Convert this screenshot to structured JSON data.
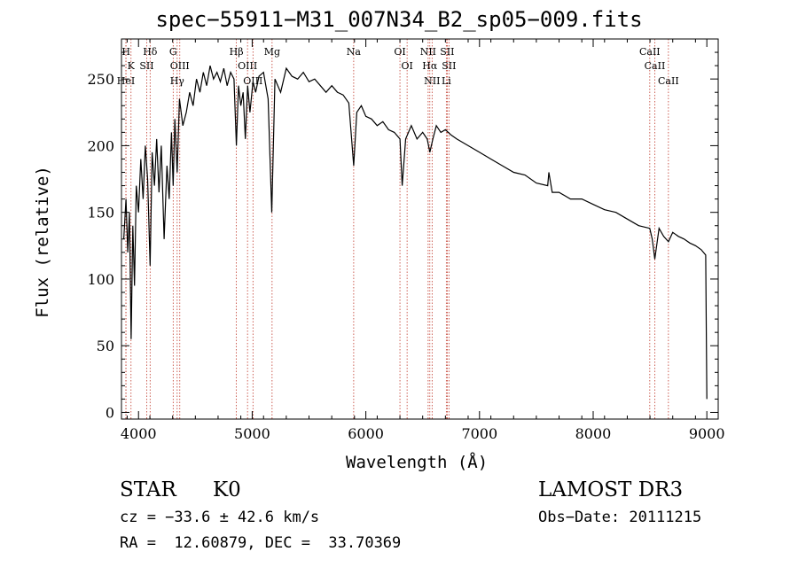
{
  "chart_data": {
    "type": "line",
    "title": "spec−55911−M31_007N34_B2_sp05−009.fits",
    "xlabel": "Wavelength (Å)",
    "ylabel": "Flux (relative)",
    "xlim": [
      3850,
      9100
    ],
    "ylim": [
      -5,
      280
    ],
    "grid": false,
    "x_ticks": [
      4000,
      5000,
      6000,
      7000,
      8000,
      9000
    ],
    "y_ticks": [
      0,
      50,
      100,
      150,
      200,
      250
    ],
    "series": [
      {
        "name": "flux",
        "x": [
          3870,
          3890,
          3905,
          3920,
          3935,
          3950,
          3965,
          3980,
          4000,
          4020,
          4040,
          4060,
          4080,
          4102,
          4120,
          4140,
          4160,
          4180,
          4200,
          4225,
          4250,
          4270,
          4290,
          4305,
          4320,
          4340,
          4360,
          4390,
          4420,
          4450,
          4480,
          4510,
          4540,
          4570,
          4600,
          4630,
          4660,
          4690,
          4720,
          4750,
          4780,
          4810,
          4840,
          4861,
          4880,
          4900,
          4920,
          4940,
          4960,
          4980,
          5007,
          5030,
          5060,
          5100,
          5140,
          5172,
          5200,
          5250,
          5300,
          5350,
          5400,
          5450,
          5500,
          5550,
          5600,
          5650,
          5700,
          5750,
          5800,
          5850,
          5893,
          5920,
          5960,
          6000,
          6050,
          6100,
          6150,
          6200,
          6250,
          6300,
          6320,
          6350,
          6400,
          6450,
          6500,
          6540,
          6563,
          6590,
          6620,
          6660,
          6700,
          6750,
          6800,
          6900,
          7000,
          7100,
          7200,
          7300,
          7400,
          7500,
          7600,
          7610,
          7640,
          7700,
          7800,
          7900,
          8000,
          8100,
          8200,
          8300,
          8400,
          8498,
          8520,
          8542,
          8580,
          8620,
          8662,
          8700,
          8750,
          8800,
          8850,
          8900,
          8950,
          8990,
          9000
        ],
        "values": [
          130,
          160,
          120,
          150,
          55,
          140,
          95,
          170,
          150,
          190,
          160,
          200,
          175,
          110,
          195,
          170,
          205,
          165,
          200,
          130,
          185,
          160,
          210,
          170,
          220,
          180,
          235,
          215,
          225,
          240,
          230,
          250,
          240,
          255,
          245,
          260,
          250,
          255,
          248,
          258,
          245,
          255,
          250,
          200,
          245,
          230,
          240,
          205,
          245,
          225,
          248,
          240,
          252,
          255,
          235,
          150,
          250,
          240,
          258,
          252,
          250,
          255,
          248,
          250,
          245,
          240,
          245,
          240,
          238,
          232,
          185,
          225,
          230,
          222,
          220,
          215,
          218,
          212,
          210,
          205,
          170,
          205,
          215,
          205,
          210,
          205,
          195,
          205,
          215,
          210,
          212,
          208,
          205,
          200,
          195,
          190,
          185,
          180,
          178,
          172,
          170,
          180,
          165,
          165,
          160,
          160,
          156,
          152,
          150,
          145,
          140,
          138,
          130,
          115,
          138,
          132,
          128,
          135,
          132,
          130,
          127,
          125,
          122,
          118,
          10
        ]
      }
    ],
    "line_markers": [
      {
        "name": "H",
        "wavelength": 3890
      },
      {
        "name": "K",
        "wavelength": 3934
      },
      {
        "name": "HeI",
        "wavelength": 3889
      },
      {
        "name": "Hδ",
        "wavelength": 4102
      },
      {
        "name": "SII",
        "wavelength": 4072
      },
      {
        "name": "G",
        "wavelength": 4305
      },
      {
        "name": "OIII",
        "wavelength": 4363
      },
      {
        "name": "Hγ",
        "wavelength": 4340
      },
      {
        "name": "Hβ",
        "wavelength": 4861
      },
      {
        "name": "OIII",
        "wavelength": 4959
      },
      {
        "name": "OIII",
        "wavelength": 5007
      },
      {
        "name": "Mg",
        "wavelength": 5175
      },
      {
        "name": "Na",
        "wavelength": 5893
      },
      {
        "name": "OI",
        "wavelength": 6300
      },
      {
        "name": "OI",
        "wavelength": 6363
      },
      {
        "name": "NII",
        "wavelength": 6548
      },
      {
        "name": "Hα",
        "wavelength": 6563
      },
      {
        "name": "NII",
        "wavelength": 6583
      },
      {
        "name": "SII",
        "wavelength": 6716
      },
      {
        "name": "SII",
        "wavelength": 6731
      },
      {
        "name": "Li",
        "wavelength": 6708
      },
      {
        "name": "CaII",
        "wavelength": 8498
      },
      {
        "name": "CaII",
        "wavelength": 8542
      },
      {
        "name": "CaII",
        "wavelength": 8662
      }
    ]
  },
  "info": {
    "class": "STAR",
    "subclass": "K0",
    "survey": "LAMOST DR3",
    "redshift": "cz = −33.6 ± 42.6 km/s",
    "obs_date": "Obs−Date: 20111215",
    "coords": "RA =  12.60879, DEC =  33.70369"
  },
  "colors": {
    "spectrum": "#000000",
    "marker": "#c0392b",
    "axis": "#000000"
  }
}
